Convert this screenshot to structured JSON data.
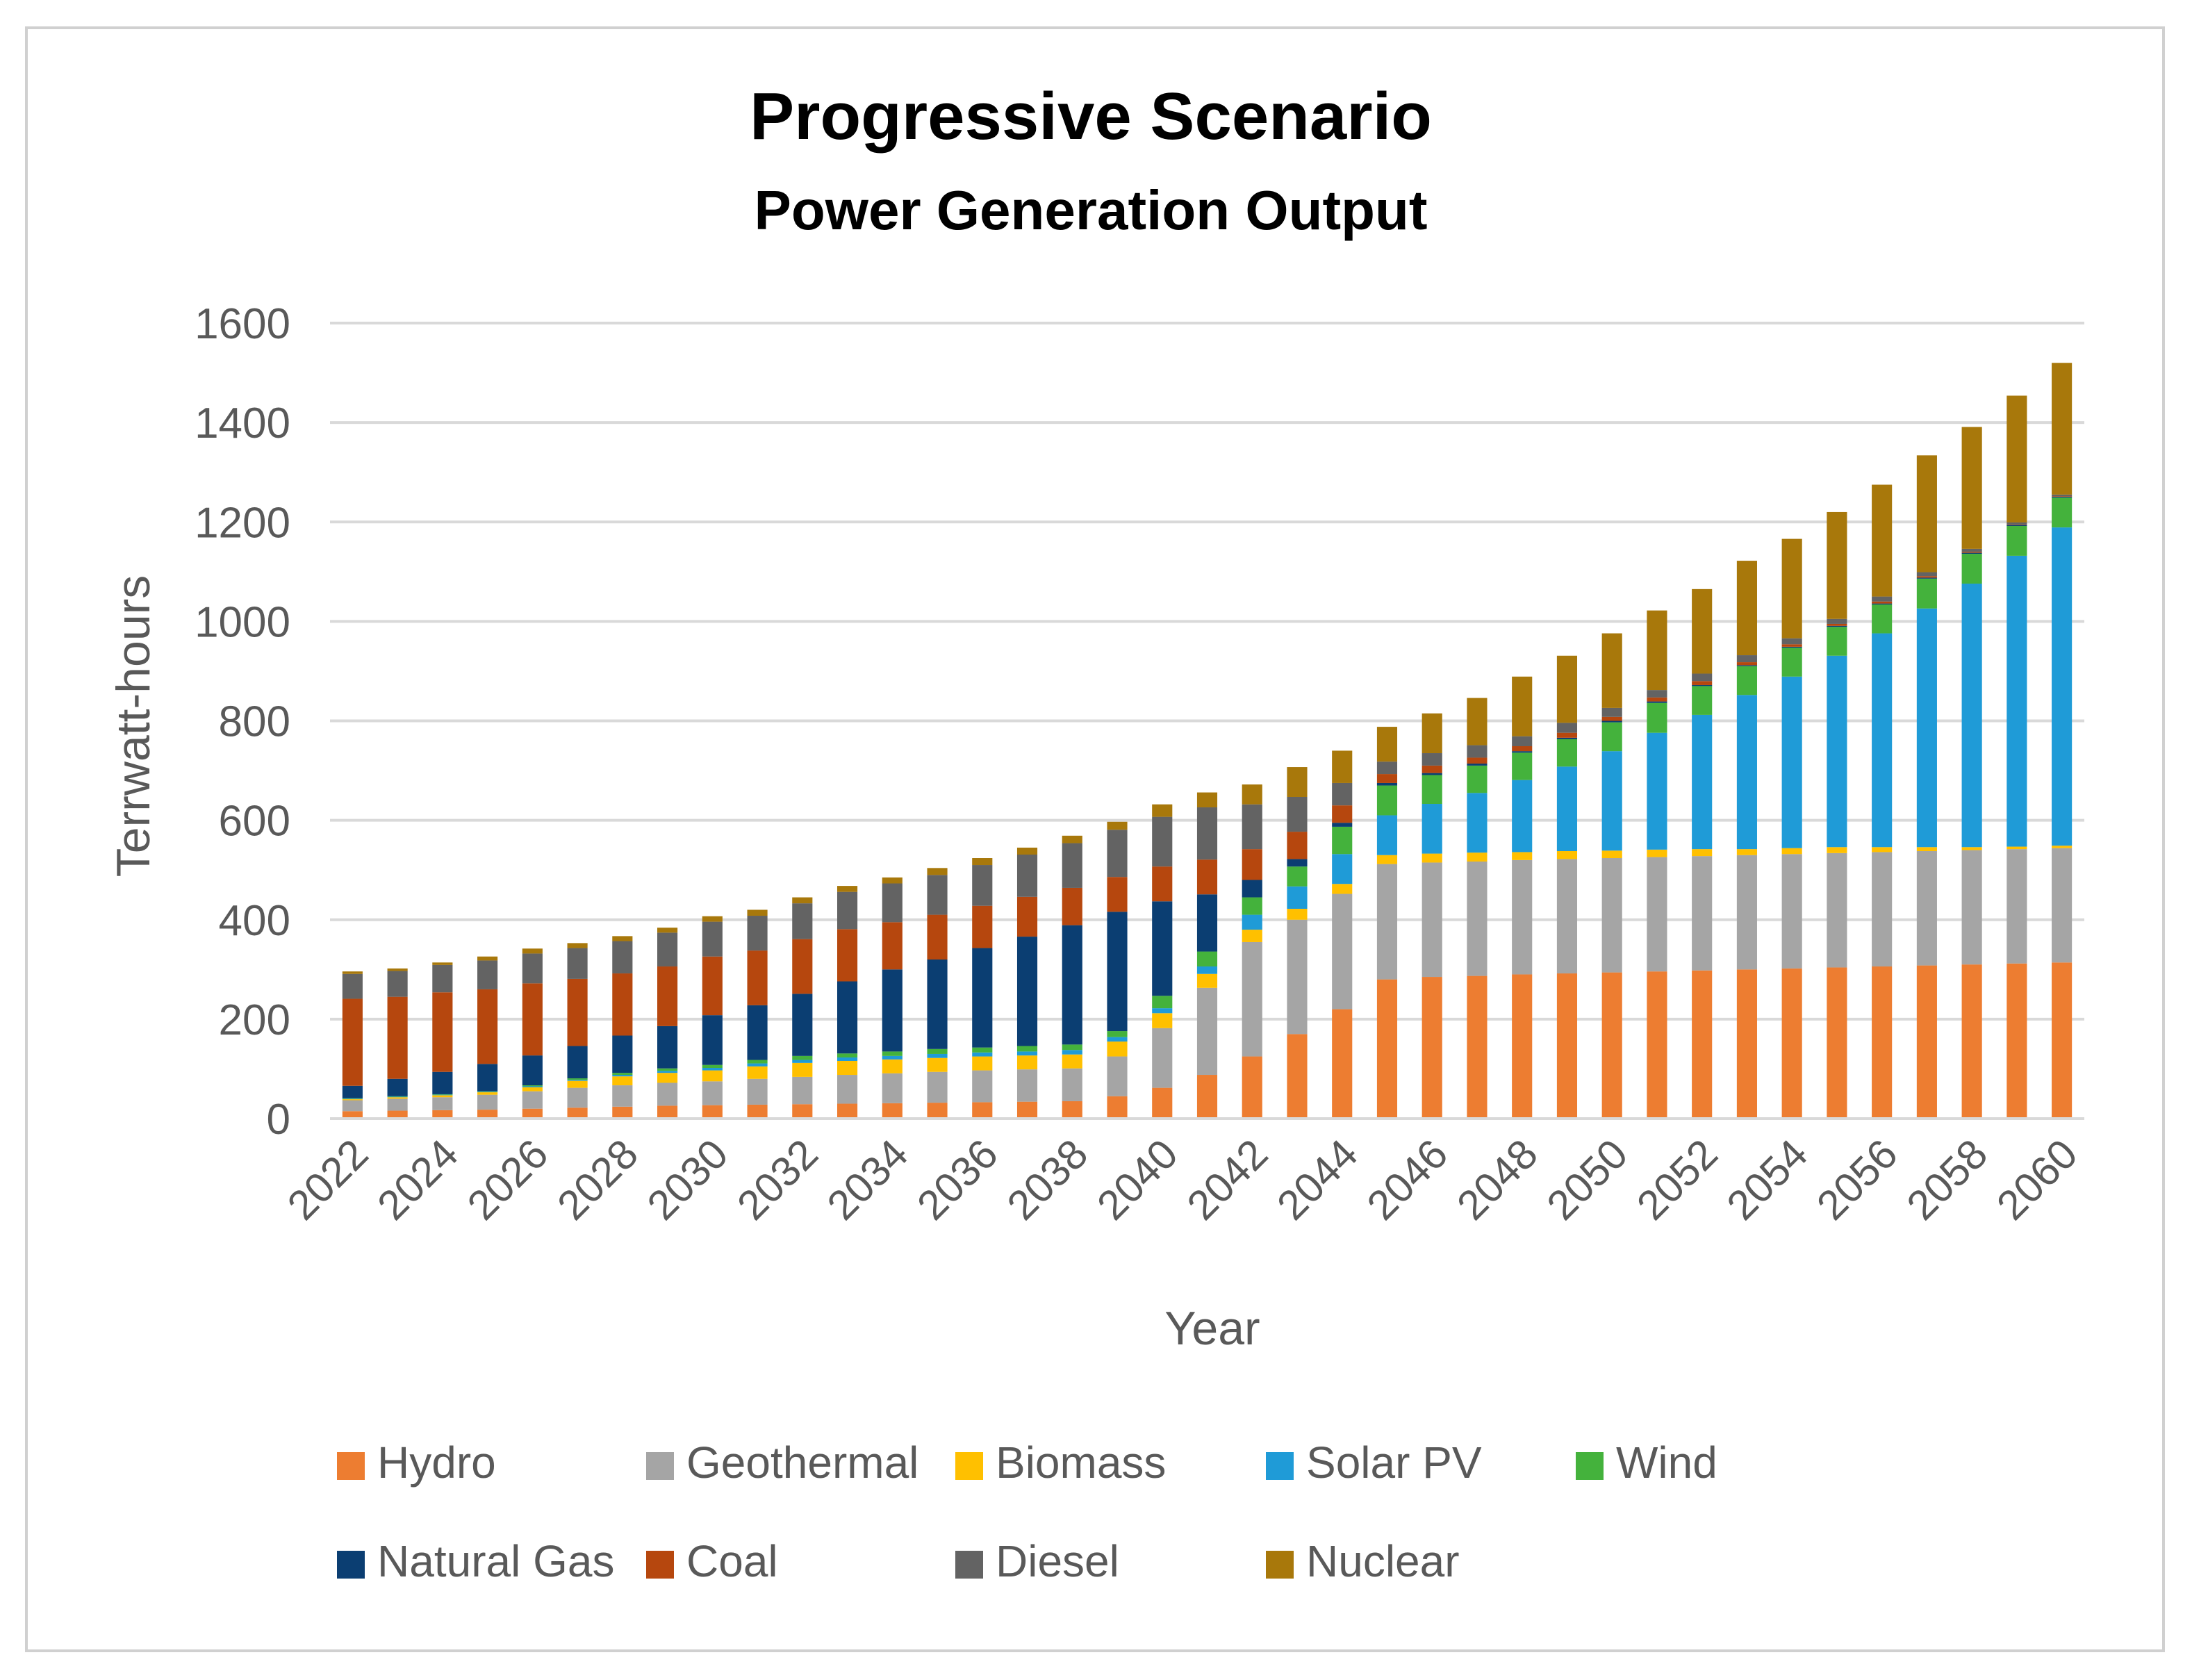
{
  "chart_data": {
    "type": "bar",
    "stacked": true,
    "title": "Progressive Scenario",
    "subtitle": "Power Generation Output",
    "xlabel": "Year",
    "ylabel": "Terrwatt-hours",
    "ylim": [
      0,
      1600
    ],
    "yticks": [
      0,
      200,
      400,
      600,
      800,
      1000,
      1200,
      1400,
      1600
    ],
    "grid": true,
    "legend_position": "bottom",
    "categories": [
      2022,
      2023,
      2024,
      2025,
      2026,
      2027,
      2028,
      2029,
      2030,
      2031,
      2032,
      2033,
      2034,
      2035,
      2036,
      2037,
      2038,
      2039,
      2040,
      2041,
      2042,
      2043,
      2044,
      2045,
      2046,
      2047,
      2048,
      2049,
      2050,
      2051,
      2052,
      2053,
      2054,
      2055,
      2056,
      2057,
      2058,
      2059,
      2060
    ],
    "xtick_labels": [
      "2022",
      "",
      "2024",
      "",
      "2026",
      "",
      "2028",
      "",
      "2030",
      "",
      "2032",
      "",
      "2034",
      "",
      "2036",
      "",
      "2038",
      "",
      "2040",
      "",
      "2042",
      "",
      "2044",
      "",
      "2046",
      "",
      "2048",
      "",
      "2050",
      "",
      "2052",
      "",
      "2054",
      "",
      "2056",
      "",
      "2058",
      "",
      "2060"
    ],
    "series": [
      {
        "name": "Hydro",
        "color": "#ED7D31",
        "values": [
          15,
          16,
          17,
          18,
          20,
          22,
          24,
          26,
          27,
          28,
          29,
          30,
          31,
          32,
          33,
          34,
          35,
          45,
          62,
          88,
          125,
          170,
          220,
          280,
          285,
          287,
          290,
          292,
          294,
          296,
          298,
          300,
          302,
          304,
          306,
          308,
          310,
          312,
          314
        ]
      },
      {
        "name": "Geothermal",
        "color": "#A5A5A5",
        "values": [
          22,
          24,
          26,
          30,
          35,
          40,
          43,
          46,
          48,
          52,
          55,
          58,
          60,
          62,
          64,
          65,
          66,
          80,
          120,
          175,
          230,
          230,
          232,
          232,
          230,
          230,
          230,
          230,
          230,
          230,
          230,
          230,
          230,
          230,
          230,
          230,
          230,
          230,
          230
        ]
      },
      {
        "name": "Biomass",
        "color": "#FFC000",
        "values": [
          2,
          3,
          4,
          5,
          8,
          14,
          18,
          20,
          22,
          25,
          28,
          28,
          28,
          28,
          28,
          28,
          28,
          30,
          30,
          28,
          25,
          22,
          20,
          18,
          18,
          18,
          16,
          16,
          15,
          15,
          14,
          12,
          12,
          12,
          10,
          8,
          6,
          5,
          5
        ]
      },
      {
        "name": "Solar PV",
        "color": "#1F9BD7",
        "values": [
          1,
          1,
          1,
          1,
          2,
          2,
          3,
          4,
          5,
          6,
          6,
          7,
          7,
          8,
          8,
          8,
          9,
          9,
          10,
          15,
          30,
          45,
          60,
          80,
          100,
          120,
          145,
          170,
          200,
          235,
          270,
          310,
          345,
          385,
          430,
          480,
          530,
          585,
          640
        ]
      },
      {
        "name": "Wind",
        "color": "#44B23C",
        "values": [
          1,
          1,
          1,
          1,
          2,
          3,
          4,
          5,
          6,
          7,
          8,
          8,
          9,
          10,
          10,
          11,
          11,
          12,
          25,
          30,
          35,
          40,
          55,
          60,
          58,
          55,
          55,
          55,
          58,
          60,
          58,
          58,
          58,
          58,
          58,
          60,
          60,
          60,
          60
        ]
      },
      {
        "name": "Natural Gas",
        "color": "#0B3E72",
        "values": [
          25,
          35,
          45,
          55,
          60,
          65,
          75,
          85,
          100,
          110,
          125,
          145,
          165,
          180,
          200,
          220,
          240,
          240,
          190,
          115,
          35,
          15,
          8,
          5,
          4,
          4,
          3,
          3,
          3,
          3,
          2,
          2,
          2,
          2,
          2,
          2,
          2,
          2,
          2
        ]
      },
      {
        "name": "Coal",
        "color": "#B6470E",
        "values": [
          175,
          165,
          160,
          150,
          145,
          135,
          125,
          120,
          118,
          110,
          110,
          105,
          95,
          90,
          85,
          80,
          75,
          70,
          70,
          70,
          62,
          55,
          35,
          18,
          15,
          12,
          10,
          10,
          8,
          8,
          8,
          6,
          5,
          4,
          4,
          3,
          2,
          1,
          1
        ]
      },
      {
        "name": "Diesel",
        "color": "#636363",
        "values": [
          50,
          52,
          55,
          58,
          60,
          62,
          65,
          68,
          70,
          70,
          72,
          75,
          78,
          80,
          82,
          85,
          90,
          95,
          100,
          105,
          90,
          70,
          45,
          25,
          25,
          25,
          20,
          20,
          18,
          15,
          15,
          14,
          12,
          10,
          10,
          8,
          6,
          4,
          3
        ]
      },
      {
        "name": "Nuclear",
        "color": "#A8780B",
        "values": [
          5,
          5,
          5,
          8,
          10,
          10,
          10,
          10,
          11,
          12,
          12,
          12,
          12,
          14,
          14,
          14,
          15,
          16,
          25,
          30,
          40,
          60,
          65,
          70,
          80,
          95,
          120,
          135,
          150,
          160,
          170,
          190,
          200,
          215,
          225,
          235,
          245,
          255,
          265
        ]
      }
    ]
  }
}
